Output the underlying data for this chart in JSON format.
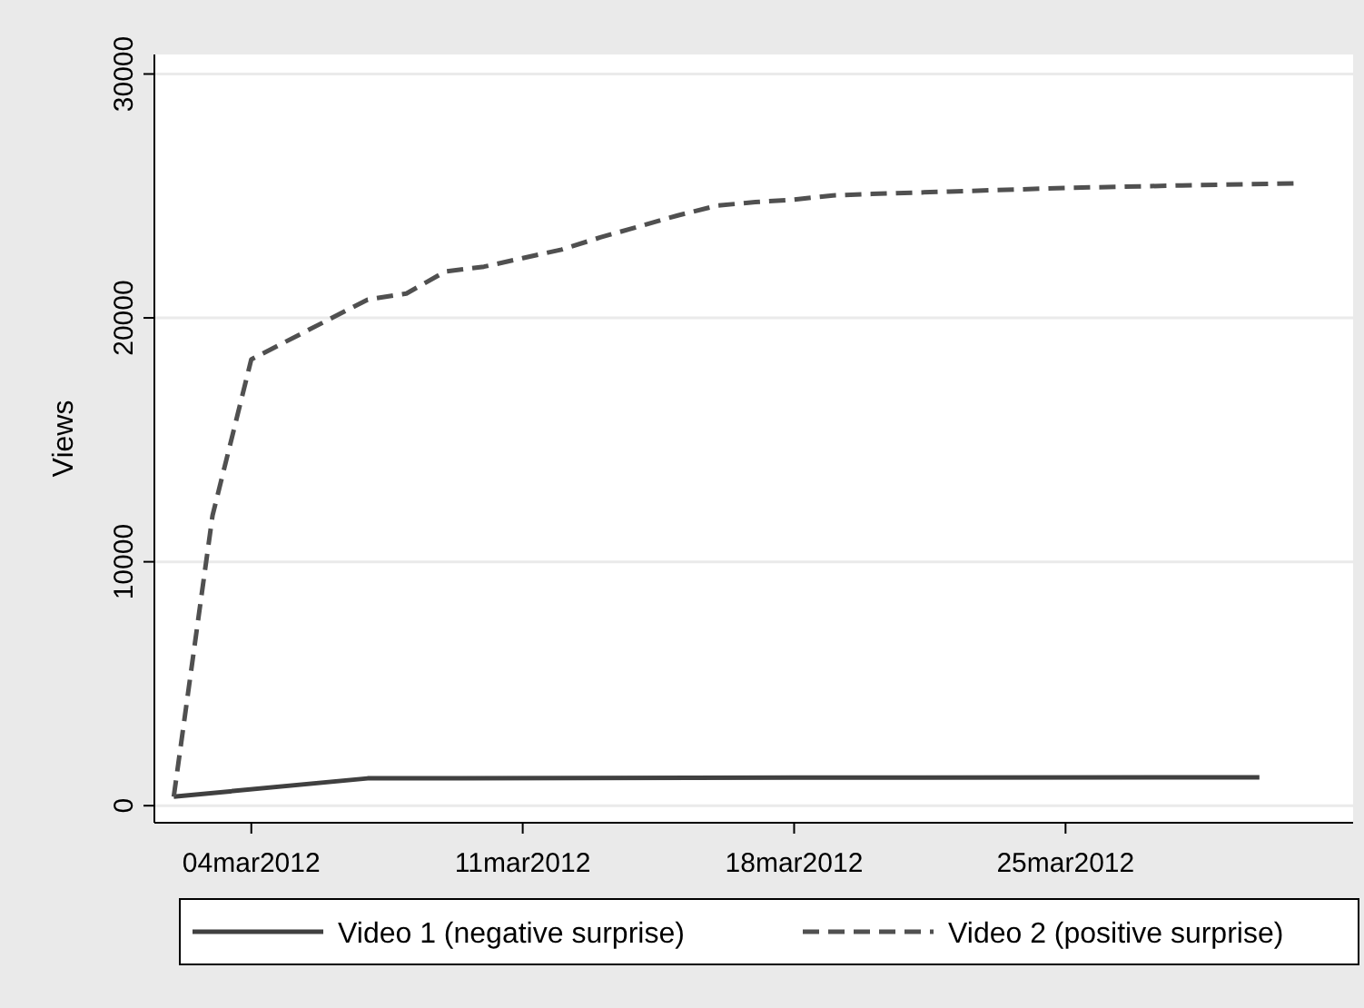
{
  "chart_data": {
    "type": "line",
    "ylabel": "Views",
    "xlim": [
      "2012-03-01T12:00",
      "2012-04-01T10:00"
    ],
    "xticks": [
      {
        "value": "2012-03-04",
        "label": "04mar2012"
      },
      {
        "value": "2012-03-11",
        "label": "11mar2012"
      },
      {
        "value": "2012-03-18",
        "label": "18mar2012"
      },
      {
        "value": "2012-03-25",
        "label": "25mar2012"
      }
    ],
    "ylim": [
      -700,
      30800
    ],
    "yticks": [
      0,
      10000,
      20000,
      30000
    ],
    "grid": "y",
    "legend": "bottom",
    "series": [
      {
        "name": "Video 1 (negative surprise)",
        "color": "#404040",
        "line_style": "solid",
        "x": [
          "2012-03-02",
          "2012-03-07",
          "2012-03-18",
          "2012-03-30"
        ],
        "values": [
          370,
          1120,
          1150,
          1165
        ]
      },
      {
        "name": "Video 2 (positive surprise)",
        "color": "#505050",
        "line_style": "dashed",
        "x": [
          "2012-03-02",
          "2012-03-03",
          "2012-03-04",
          "2012-03-07",
          "2012-03-08",
          "2012-03-09",
          "2012-03-10",
          "2012-03-11",
          "2012-03-12",
          "2012-03-13",
          "2012-03-14",
          "2012-03-15",
          "2012-03-16",
          "2012-03-17",
          "2012-03-18",
          "2012-03-19",
          "2012-03-20",
          "2012-03-22",
          "2012-03-25",
          "2012-03-28",
          "2012-03-31"
        ],
        "values": [
          370,
          11900,
          18300,
          20750,
          21000,
          21900,
          22100,
          22450,
          22800,
          23300,
          23750,
          24200,
          24600,
          24750,
          24850,
          25020,
          25080,
          25180,
          25330,
          25430,
          25520
        ]
      }
    ]
  }
}
